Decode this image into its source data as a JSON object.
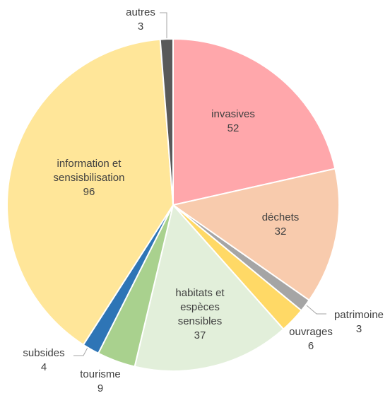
{
  "chart_data": {
    "type": "pie",
    "categories": [
      "invasives",
      "déchets",
      "patrimoine",
      "ouvrages",
      "habitats et espèces sensibles",
      "tourisme",
      "subsides",
      "information et sensisbilisation",
      "autres"
    ],
    "values": [
      52,
      32,
      3,
      6,
      37,
      9,
      4,
      96,
      3
    ],
    "colors": [
      "#ffa7ab",
      "#f8cbad",
      "#a5a5a5",
      "#ffd966",
      "#e2efda",
      "#a9d18e",
      "#2e75b6",
      "#ffe699",
      "#595959"
    ]
  }
}
